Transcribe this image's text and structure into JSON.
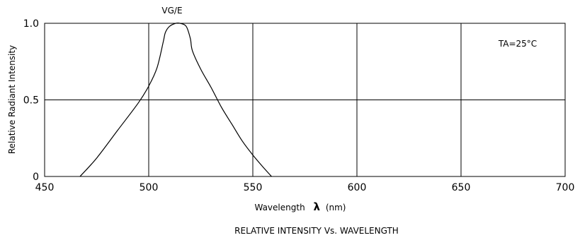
{
  "chart_data": {
    "type": "line",
    "title": "RELATIVE INTENSITY Vs. WAVELENGTH",
    "series_label": "VG/E",
    "annotation": "TA=25°C",
    "xlabel": "Wavelength",
    "xlabel_symbol": "λ",
    "xlabel_unit": "(nm)",
    "ylabel": "Relative Radiant Intensity",
    "xlim": [
      450,
      700
    ],
    "ylim": [
      0,
      1.0
    ],
    "xticks": [
      450,
      500,
      550,
      600,
      650,
      700
    ],
    "xtick_labels": [
      "450",
      "500",
      "550",
      "600",
      "650",
      "700"
    ],
    "yticks": [
      0,
      0.5,
      1.0
    ],
    "ytick_labels": [
      "0",
      "0.5",
      "1.0"
    ],
    "grid_x": [
      500,
      550,
      600,
      650
    ],
    "grid_y": [
      0.5
    ],
    "series": [
      {
        "x": [
          467,
          475,
          485,
          495,
          500,
          504,
          507,
          508,
          510,
          513,
          515,
          518,
          520,
          521,
          525,
          530,
          535,
          540,
          545,
          550,
          555,
          559
        ],
        "y": [
          0.0,
          0.12,
          0.3,
          0.48,
          0.59,
          0.71,
          0.88,
          0.94,
          0.98,
          1.0,
          1.0,
          0.98,
          0.9,
          0.82,
          0.7,
          0.58,
          0.45,
          0.34,
          0.23,
          0.14,
          0.06,
          0.0
        ]
      }
    ]
  }
}
